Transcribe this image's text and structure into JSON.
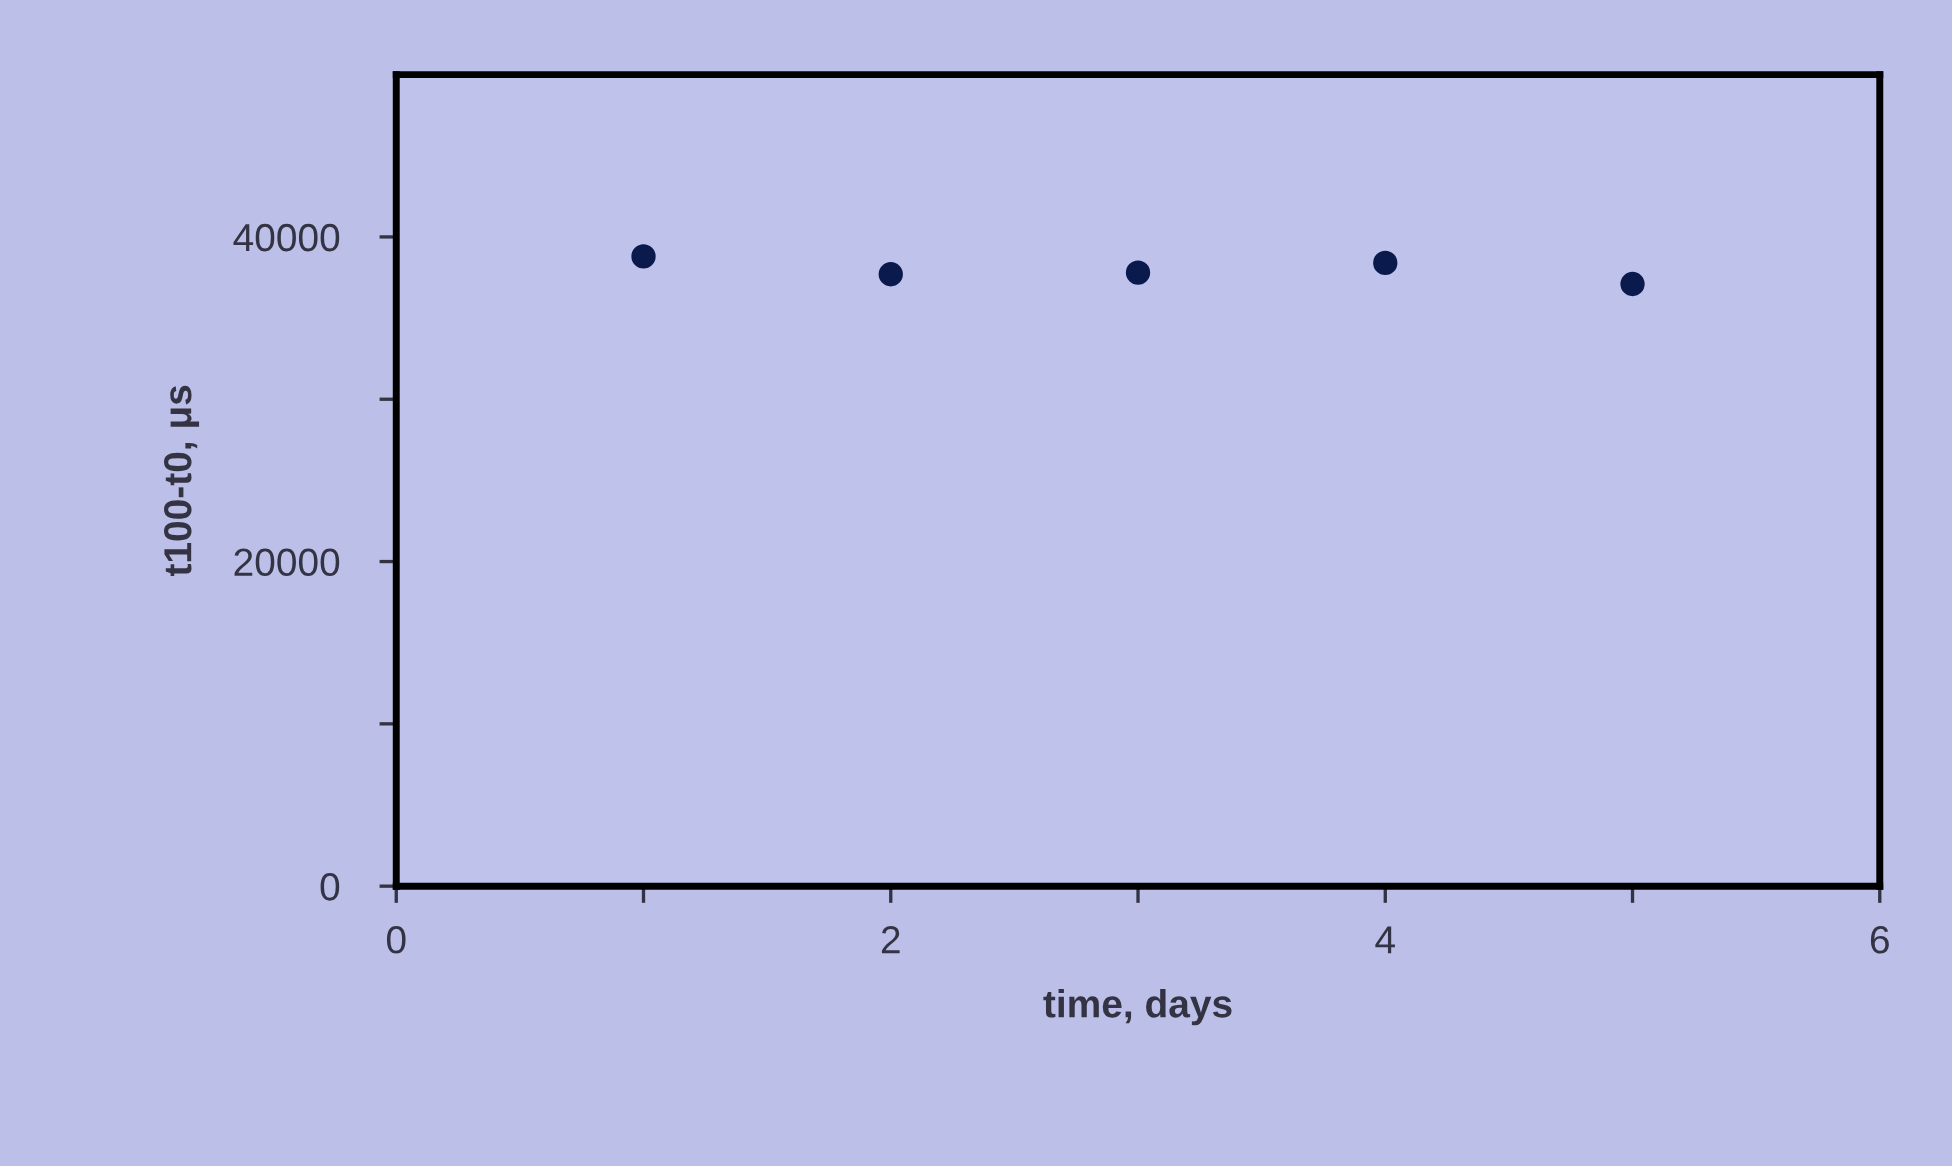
{
  "chart_data": {
    "type": "scatter",
    "xlabel": "time, days",
    "ylabel": "t100-t0, μs",
    "x": [
      1,
      2,
      3,
      4,
      5
    ],
    "series": [
      {
        "color": "#0b1a4d",
        "values": [
          38800,
          37700,
          37800,
          38400,
          37100
        ]
      }
    ],
    "xlim": [
      0,
      6
    ],
    "ylim": [
      0,
      50000
    ],
    "xticks": [
      0,
      {
        "value": 1,
        "label": null
      },
      2,
      {
        "value": 3,
        "label": null
      },
      4,
      {
        "value": 5,
        "label": null
      },
      6
    ],
    "yticks": [
      0,
      {
        "value": 10000,
        "label": null
      },
      20000,
      {
        "value": 30000,
        "label": null
      },
      40000
    ],
    "marker": "circle",
    "grid": false,
    "legend": false
  }
}
